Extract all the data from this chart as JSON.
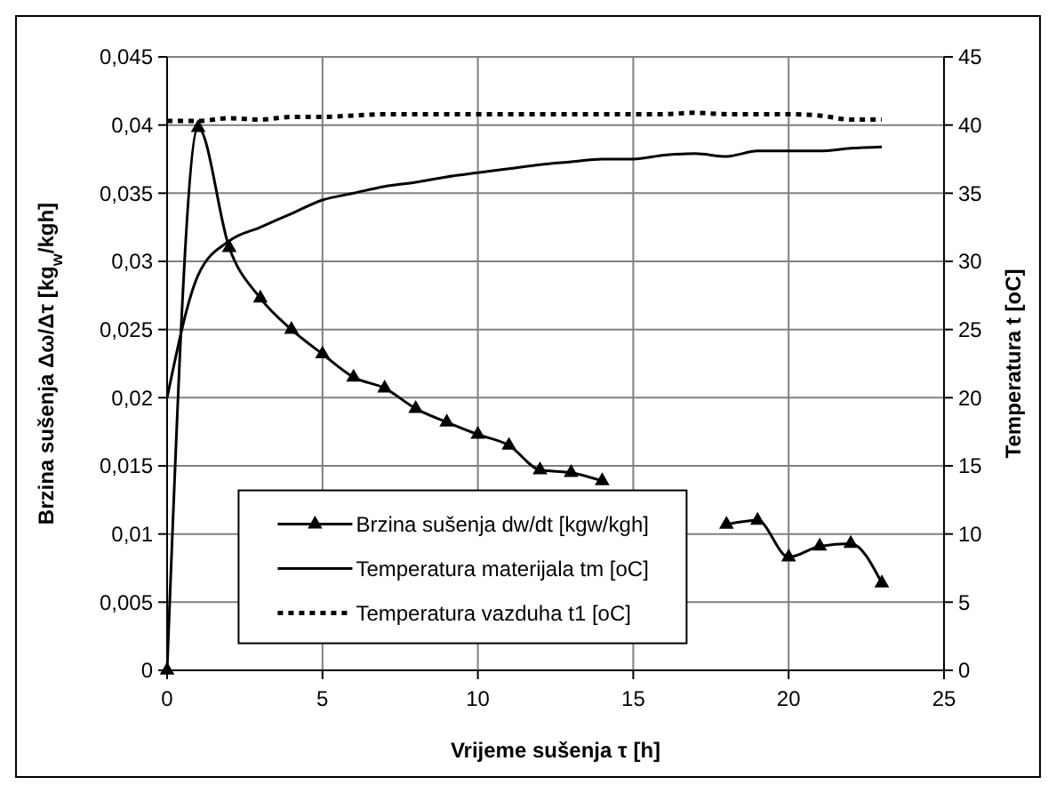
{
  "chart_data": {
    "type": "line",
    "xlabel": "Vrijeme sušenja τ [h]",
    "ylabel": "Brzina sušenja  Δω/Δτ [kg$_{w}$/kgh]",
    "y2label": "Temperatura t  [oC]",
    "x": [
      0,
      1,
      2,
      3,
      4,
      5,
      6,
      7,
      8,
      9,
      10,
      11,
      12,
      13,
      14,
      15,
      16,
      17,
      18,
      19,
      20,
      21,
      22,
      23
    ],
    "series": [
      {
        "name": "Brzina sušenja dw/dt [kgw/kgh]",
        "color": "#000000",
        "marker": "triangle",
        "line_style": "solid",
        "values": [
          0,
          0.0398,
          0.031,
          0.0273,
          0.025,
          0.0232,
          0.0215,
          0.0207,
          0.0192,
          0.0182,
          0.0173,
          0.0165,
          0.0147,
          0.0145,
          0.0139,
          null,
          null,
          null,
          0.0107,
          0.011,
          0.0083,
          0.0091,
          0.0093,
          0.0064
        ]
      },
      {
        "name": "Temperatura materijala tm [oC]",
        "color": "#000000",
        "marker": "none",
        "line_style": "solid",
        "axis": "y2",
        "values": [
          20,
          29,
          31.5,
          32.5,
          33.5,
          34.5,
          35,
          35.5,
          35.8,
          36.2,
          36.5,
          36.8,
          37.1,
          37.3,
          37.5,
          37.5,
          37.8,
          37.9,
          37.7,
          38.1,
          38.1,
          38.1,
          38.3,
          38.4
        ]
      },
      {
        "name": "Temperatura vazduha t1 [oC]",
        "color": "#000000",
        "marker": "none",
        "line_style": "dotted",
        "axis": "y2",
        "values": [
          40.3,
          40.3,
          40.5,
          40.4,
          40.6,
          40.6,
          40.7,
          40.8,
          40.8,
          40.8,
          40.8,
          40.8,
          40.8,
          40.8,
          40.8,
          40.8,
          40.8,
          40.9,
          40.8,
          40.8,
          40.8,
          40.7,
          40.4,
          40.4
        ]
      }
    ],
    "xlim": [
      0,
      25
    ],
    "xticks": [
      0,
      5,
      10,
      15,
      20,
      25
    ],
    "ylim": [
      0,
      0.045
    ],
    "yticks": [
      0,
      {
        "value": 0.005,
        "label": "0,005"
      },
      {
        "value": 0.01,
        "label": "0,01"
      },
      {
        "value": 0.015,
        "label": "0,015"
      },
      {
        "value": 0.02,
        "label": "0,02"
      },
      {
        "value": 0.025,
        "label": "0,025"
      },
      {
        "value": 0.03,
        "label": "0,03"
      },
      {
        "value": 0.035,
        "label": "0,035"
      },
      {
        "value": 0.04,
        "label": "0,04"
      },
      {
        "value": 0.045,
        "label": "0,045"
      }
    ],
    "y2lim": [
      0,
      45
    ],
    "y2ticks": [
      0,
      5,
      10,
      15,
      20,
      25,
      30,
      35,
      40,
      45
    ],
    "grid": true,
    "legend": "bottom"
  }
}
